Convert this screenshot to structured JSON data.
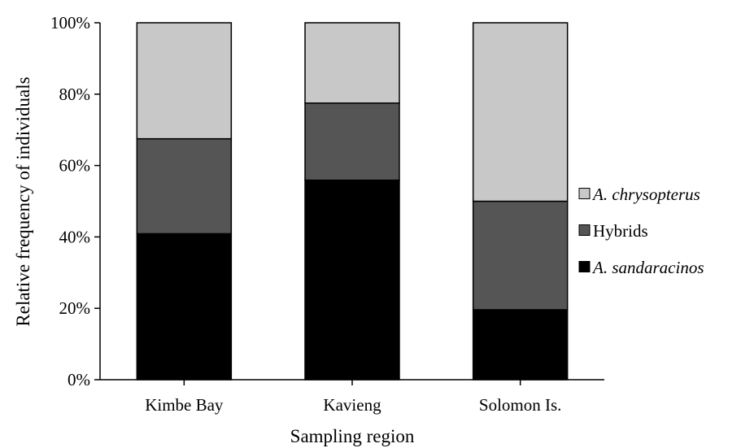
{
  "chart_data": {
    "type": "bar",
    "stacked": true,
    "categories": [
      "Kimbe Bay",
      "Kavieng",
      "Solomon Is."
    ],
    "series": [
      {
        "name": "A. sandaracinos",
        "values": [
          40.9,
          55.9,
          19.6
        ],
        "color": "#000000",
        "italic": true
      },
      {
        "name": "Hybrids",
        "values": [
          26.6,
          21.6,
          30.4
        ],
        "color": "#555555",
        "italic": false
      },
      {
        "name": "A. chrysopterus",
        "values": [
          32.5,
          22.5,
          50.0
        ],
        "color": "#c8c8c8",
        "italic": true
      }
    ],
    "legend_order": [
      "A. chrysopterus",
      "Hybrids",
      "A. sandaracinos"
    ],
    "legend_position": "right",
    "xlabel": "Sampling region",
    "ylabel": "Relative frequency of individuals",
    "ylim": [
      0,
      100
    ],
    "yticks": [
      0,
      20,
      40,
      60,
      80,
      100
    ],
    "ytick_labels": [
      "0%",
      "20%",
      "40%",
      "60%",
      "80%",
      "100%"
    ],
    "grid": false
  }
}
